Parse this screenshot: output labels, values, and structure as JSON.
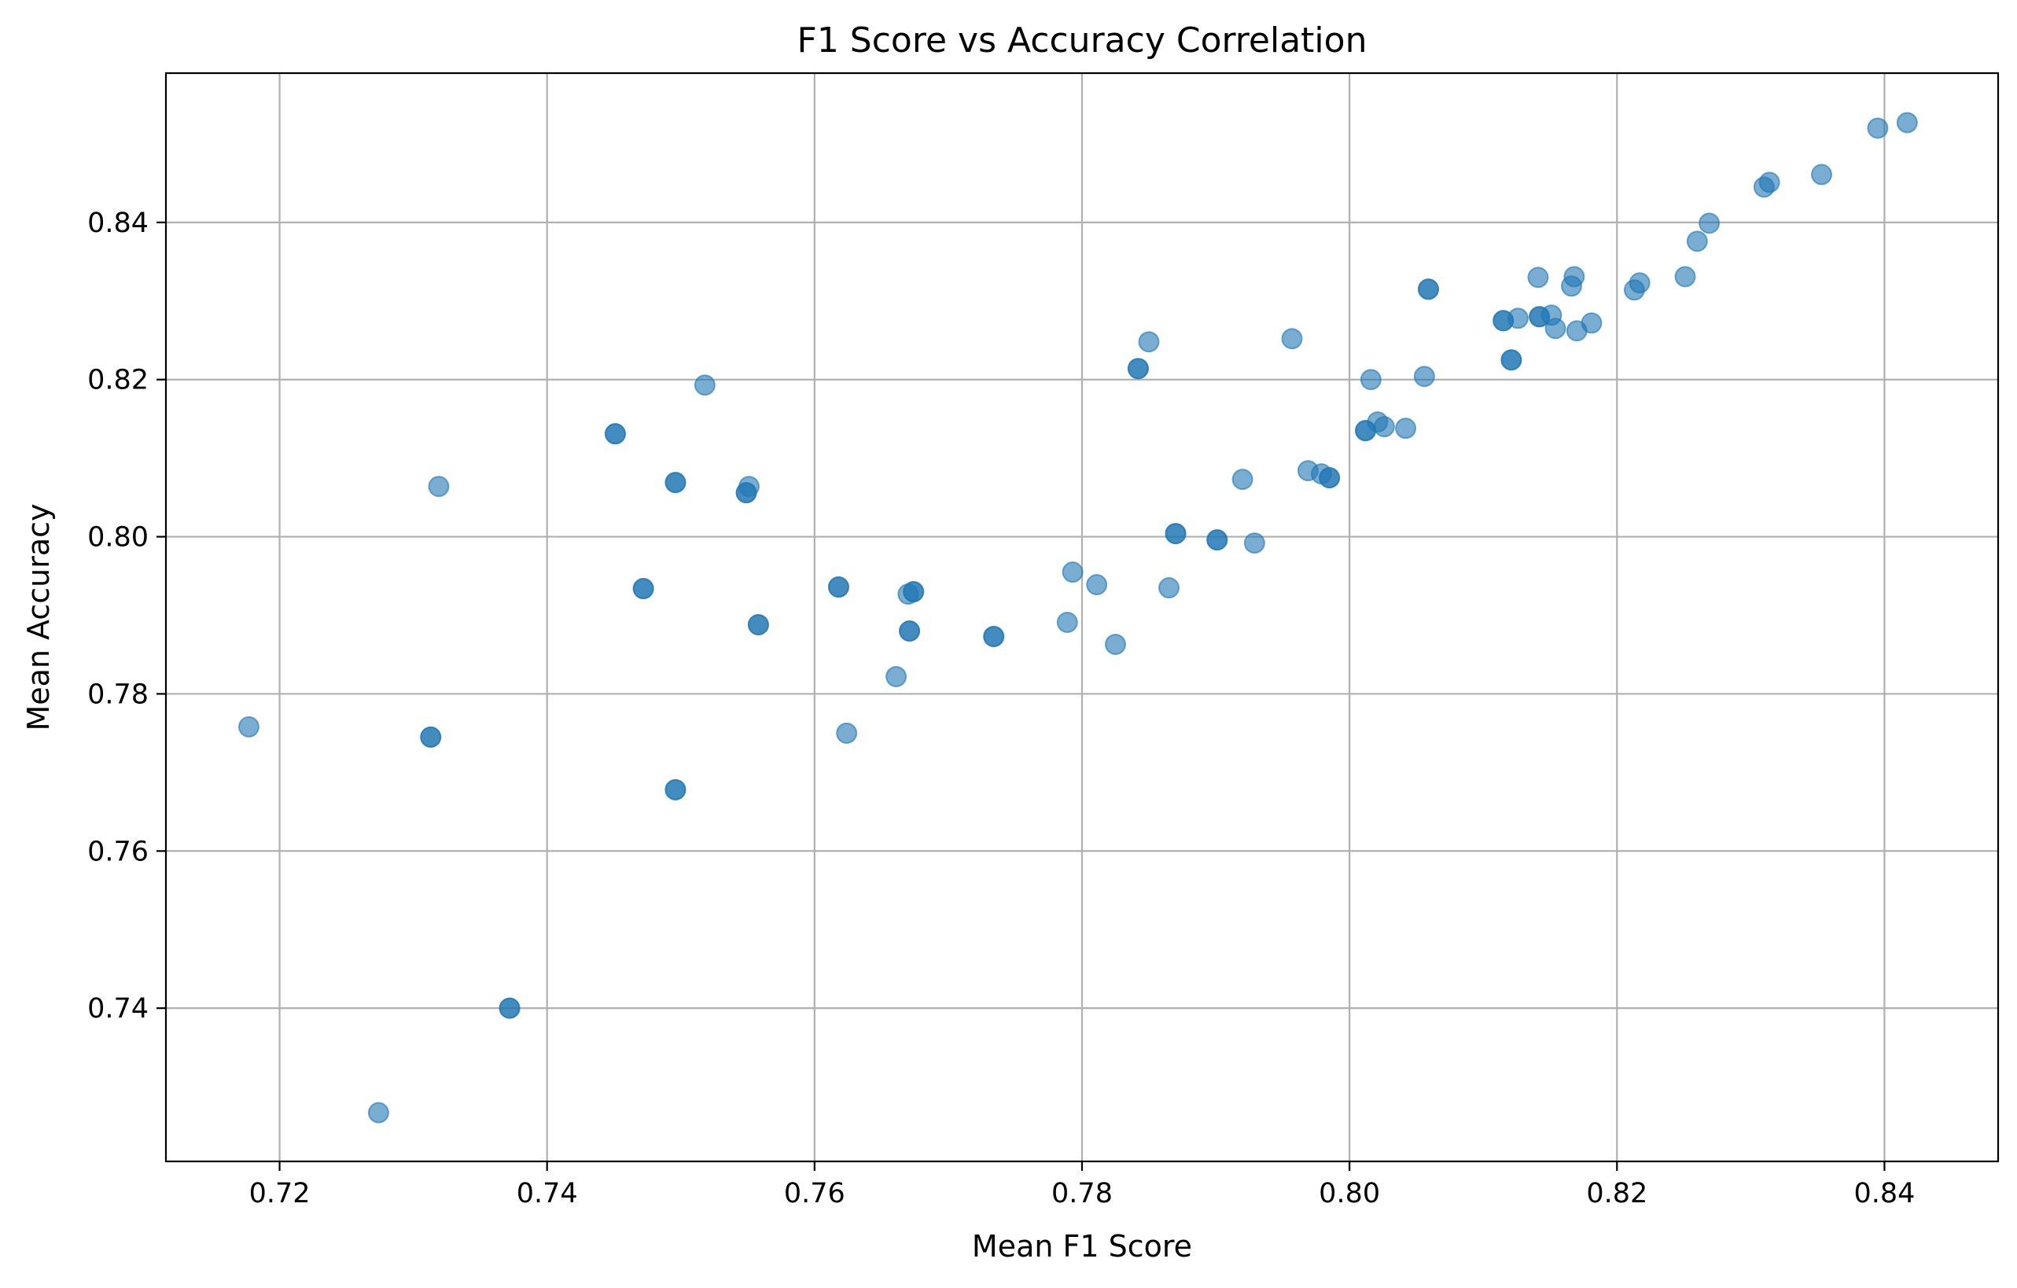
{
  "chart_data": {
    "type": "scatter",
    "title": "F1 Score vs Accuracy Correlation",
    "xlabel": "Mean F1 Score",
    "ylabel": "Mean Accuracy",
    "xlim": [
      0.7115,
      0.8485
    ],
    "ylim": [
      0.7205,
      0.859
    ],
    "xticks": [
      0.72,
      0.74,
      0.76,
      0.78,
      0.8,
      0.82,
      0.84
    ],
    "xtick_labels": [
      "0.72",
      "0.74",
      "0.76",
      "0.78",
      "0.80",
      "0.82",
      "0.84"
    ],
    "yticks": [
      0.74,
      0.76,
      0.78,
      0.8,
      0.82,
      0.84
    ],
    "ytick_labels": [
      "0.74",
      "0.76",
      "0.78",
      "0.80",
      "0.82",
      "0.84"
    ],
    "grid": true,
    "marker_color": "#1f77b4",
    "marker_alpha": 0.6,
    "series": [
      {
        "x": [
          0.7177,
          0.7274,
          0.7313,
          0.7319,
          0.7313,
          0.7372,
          0.7372,
          0.7451,
          0.7451,
          0.7472,
          0.7472,
          0.7496,
          0.7496,
          0.7496,
          0.7496,
          0.7518,
          0.7549,
          0.7549,
          0.7551,
          0.7558,
          0.7558,
          0.7618,
          0.7618,
          0.7624,
          0.7661,
          0.767,
          0.7671,
          0.7671,
          0.7674,
          0.7674,
          0.7734,
          0.7734,
          0.7789,
          0.7793,
          0.7811,
          0.7825,
          0.7842,
          0.7842,
          0.785,
          0.7865,
          0.787,
          0.787,
          0.7901,
          0.7901,
          0.792,
          0.7929,
          0.7957,
          0.7969,
          0.7979,
          0.7985,
          0.7985,
          0.8012,
          0.8012,
          0.8016,
          0.8021,
          0.8026,
          0.8042,
          0.8056,
          0.8059,
          0.8059,
          0.8115,
          0.8115,
          0.8121,
          0.8121,
          0.8126,
          0.8141,
          0.8142,
          0.8142,
          0.8151,
          0.8154,
          0.8166,
          0.8168,
          0.817,
          0.8181,
          0.8213,
          0.8217,
          0.8251,
          0.826,
          0.8269,
          0.831,
          0.8314,
          0.8353,
          0.8395,
          0.8417
        ],
        "y": [
          0.7758,
          0.7267,
          0.7745,
          0.8064,
          0.7745,
          0.74,
          0.74,
          0.8131,
          0.8131,
          0.7934,
          0.7934,
          0.8069,
          0.8069,
          0.7678,
          0.7678,
          0.8193,
          0.8056,
          0.8056,
          0.8064,
          0.7888,
          0.7888,
          0.7936,
          0.7936,
          0.775,
          0.7822,
          0.7927,
          0.788,
          0.788,
          0.793,
          0.793,
          0.7873,
          0.7873,
          0.7891,
          0.7955,
          0.7939,
          0.7863,
          0.8214,
          0.8214,
          0.8248,
          0.7935,
          0.8004,
          0.8004,
          0.7996,
          0.7996,
          0.8073,
          0.7992,
          0.8252,
          0.8084,
          0.808,
          0.8075,
          0.8075,
          0.8135,
          0.8135,
          0.82,
          0.8146,
          0.814,
          0.8138,
          0.8204,
          0.8315,
          0.8315,
          0.8275,
          0.8275,
          0.8225,
          0.8225,
          0.8278,
          0.833,
          0.828,
          0.828,
          0.8282,
          0.8265,
          0.8319,
          0.8331,
          0.8262,
          0.8272,
          0.8314,
          0.8323,
          0.8331,
          0.8376,
          0.8399,
          0.8445,
          0.8451,
          0.8461,
          0.852,
          0.8527
        ]
      }
    ]
  }
}
